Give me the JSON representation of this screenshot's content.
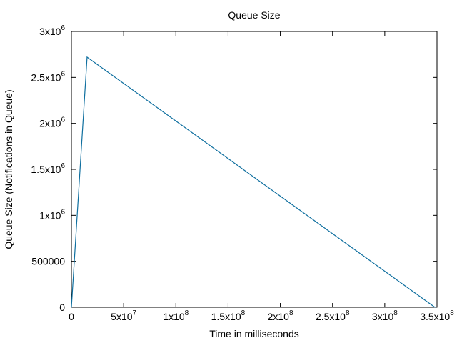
{
  "chart_data": {
    "type": "line",
    "title": "Queue Size",
    "xlabel": "Time in milliseconds",
    "ylabel": "Queue Size (Notifications in Queue)",
    "xlim": [
      0,
      350000000
    ],
    "ylim": [
      0,
      3000000
    ],
    "grid": false,
    "legend": "none",
    "x_ticks": [
      {
        "value": 0,
        "mant": "0",
        "exp": ""
      },
      {
        "value": 50000000,
        "mant": "5x10",
        "exp": "7"
      },
      {
        "value": 100000000,
        "mant": "1x10",
        "exp": "8"
      },
      {
        "value": 150000000,
        "mant": "1.5x10",
        "exp": "8"
      },
      {
        "value": 200000000,
        "mant": "2x10",
        "exp": "8"
      },
      {
        "value": 250000000,
        "mant": "2.5x10",
        "exp": "8"
      },
      {
        "value": 300000000,
        "mant": "3x10",
        "exp": "8"
      },
      {
        "value": 350000000,
        "mant": "3.5x10",
        "exp": "8"
      }
    ],
    "y_ticks": [
      {
        "value": 0,
        "mant": "0",
        "exp": ""
      },
      {
        "value": 500000,
        "mant": "500000",
        "exp": ""
      },
      {
        "value": 1000000,
        "mant": "1x10",
        "exp": "6"
      },
      {
        "value": 1500000,
        "mant": "1.5x10",
        "exp": "6"
      },
      {
        "value": 2000000,
        "mant": "2x10",
        "exp": "6"
      },
      {
        "value": 2500000,
        "mant": "2.5x10",
        "exp": "6"
      },
      {
        "value": 3000000,
        "mant": "3x10",
        "exp": "6"
      }
    ],
    "series": [
      {
        "color": "#0f6f9f",
        "x": [
          0,
          15000000,
          348000000
        ],
        "y": [
          0,
          2720000,
          0
        ]
      }
    ]
  }
}
